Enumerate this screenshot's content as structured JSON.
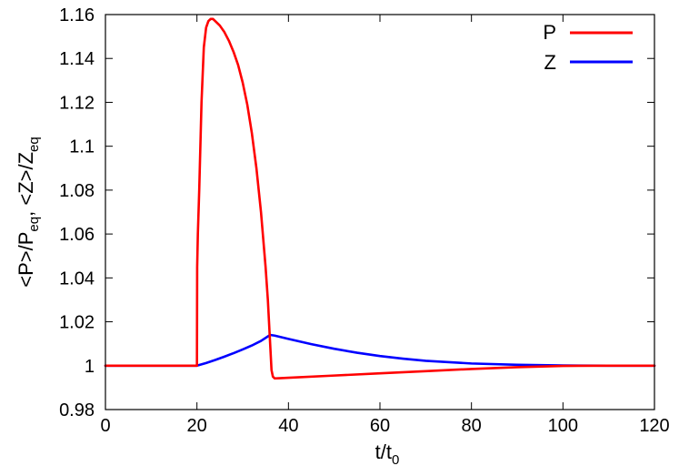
{
  "chart_data": {
    "type": "line",
    "xlabel": {
      "main": "t/t",
      "sub": "0"
    },
    "ylabel": {
      "p1": "<P>/P",
      "s1": "eq",
      "p2": ", <Z>/Z",
      "s2": "eq"
    },
    "xlim": [
      0,
      120
    ],
    "ylim": [
      0.98,
      1.16
    ],
    "xticks": [
      0,
      20,
      40,
      60,
      80,
      100,
      120
    ],
    "xtick_labels": [
      "0",
      "20",
      "40",
      "60",
      "80",
      "100",
      "120"
    ],
    "yticks": [
      0.98,
      1.0,
      1.02,
      1.04,
      1.06,
      1.08,
      1.1,
      1.12,
      1.14,
      1.16
    ],
    "ytick_labels": [
      "0.98",
      "1",
      "1.02",
      "1.04",
      "1.06",
      "1.08",
      "1.1",
      "1.12",
      "1.14",
      "1.16"
    ],
    "grid": false,
    "legend_position": "top-right",
    "series": [
      {
        "name": "P",
        "color": "#ff0000",
        "x": [
          0,
          19.9,
          20.0,
          20.05,
          20.2,
          20.5,
          21.0,
          21.5,
          22.0,
          22.5,
          23.0,
          23.5,
          24.0,
          25.0,
          26.0,
          27.0,
          28.0,
          29.0,
          30.0,
          31.0,
          32.0,
          33.0,
          34.0,
          35.0,
          35.5,
          36.0,
          36.3,
          36.6,
          37.0,
          38.0,
          40.0,
          50.0,
          60.0,
          70.0,
          80.0,
          90.0,
          100.0,
          110.0,
          120.0
        ],
        "y": [
          1.0,
          1.0,
          1.0,
          1.045,
          1.06,
          1.08,
          1.12,
          1.145,
          1.154,
          1.157,
          1.158,
          1.158,
          1.157,
          1.155,
          1.152,
          1.148,
          1.143,
          1.137,
          1.129,
          1.119,
          1.106,
          1.09,
          1.07,
          1.045,
          1.03,
          1.01,
          0.998,
          0.995,
          0.9942,
          0.9943,
          0.9945,
          0.9955,
          0.9965,
          0.9975,
          0.9985,
          0.9993,
          0.9999,
          1.0,
          1.0
        ]
      },
      {
        "name": "Z",
        "color": "#0000ff",
        "x": [
          0,
          20.0,
          22.0,
          24.0,
          26.0,
          28.0,
          30.0,
          32.0,
          34.0,
          36.0,
          37.0,
          40.0,
          45.0,
          50.0,
          55.0,
          60.0,
          65.0,
          70.0,
          80.0,
          90.0,
          100.0,
          110.0,
          120.0
        ],
        "y": [
          1.0,
          1.0,
          1.0012,
          1.0026,
          1.0041,
          1.0057,
          1.0074,
          1.0092,
          1.0113,
          1.014,
          1.0137,
          1.0122,
          1.0098,
          1.0077,
          1.0059,
          1.0044,
          1.0032,
          1.0022,
          1.001,
          1.0004,
          1.0001,
          1.0,
          1.0
        ]
      }
    ]
  }
}
